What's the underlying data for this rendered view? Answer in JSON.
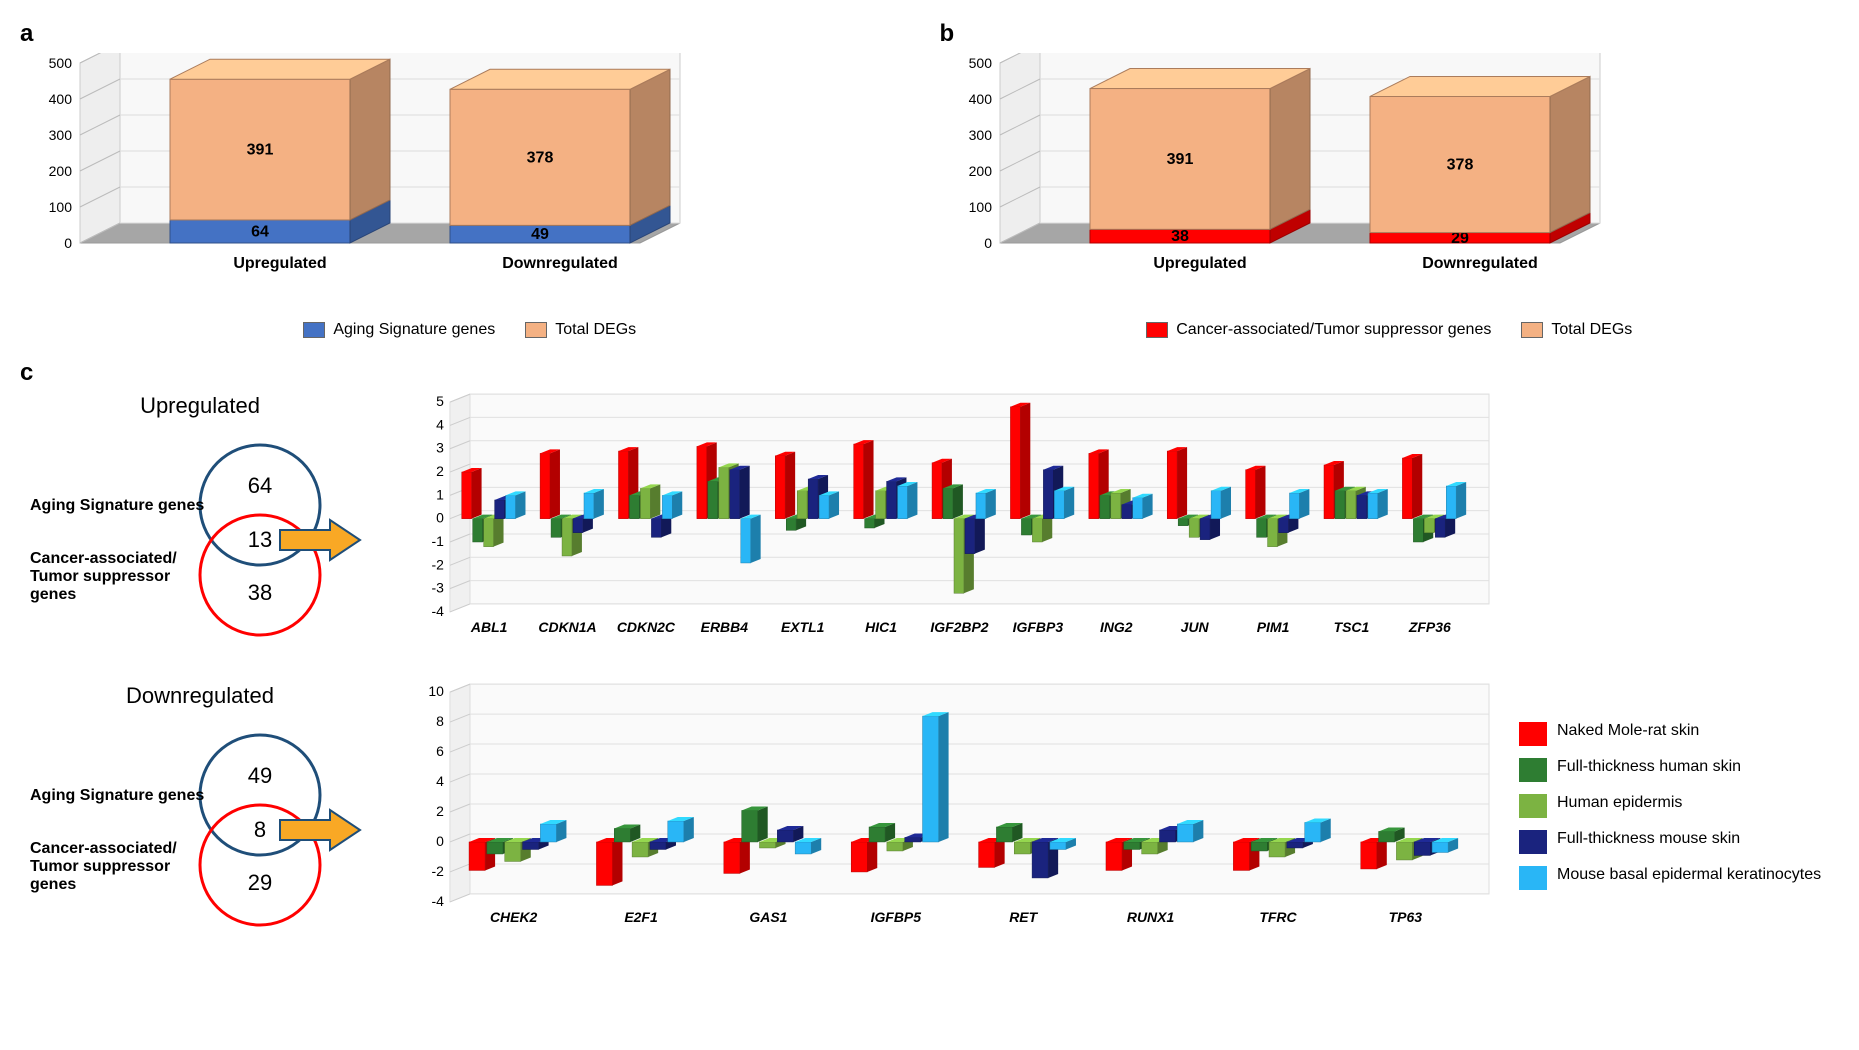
{
  "panel_a": {
    "label": "a",
    "type": "3d-stacked-bar",
    "ylim": [
      0,
      500
    ],
    "ytick_step": 100,
    "categories": [
      "Upregulated",
      "Downregulated"
    ],
    "series": [
      {
        "name": "Aging Signature genes",
        "color": "#4472c4",
        "values": [
          64,
          49
        ]
      },
      {
        "name": "Total DEGs",
        "color": "#f4b183",
        "values": [
          391,
          378
        ]
      }
    ],
    "floor_color": "#a6a6a6",
    "background_color": "#ffffff"
  },
  "panel_b": {
    "label": "b",
    "type": "3d-stacked-bar",
    "ylim": [
      0,
      500
    ],
    "ytick_step": 100,
    "categories": [
      "Upregulated",
      "Downregulated"
    ],
    "series": [
      {
        "name": "Cancer-associated/Tumor suppressor genes",
        "color": "#ff0000",
        "values": [
          38,
          29
        ]
      },
      {
        "name": "Total DEGs",
        "color": "#f4b183",
        "values": [
          391,
          378
        ]
      }
    ],
    "floor_color": "#a6a6a6",
    "background_color": "#ffffff"
  },
  "panel_c": {
    "label": "c",
    "venns": [
      {
        "title": "Upregulated",
        "top_label": "Aging Signature genes",
        "bottom_label": "Cancer-associated/\nTumor suppressor\ngenes",
        "top_value_only": 64,
        "intersection": 13,
        "bottom_value_only": 38,
        "top_circle_color": "#1f4e79",
        "bottom_circle_color": "#ff0000"
      },
      {
        "title": "Downregulated",
        "top_label": "Aging Signature genes",
        "bottom_label": "Cancer-associated/\nTumor suppressor\ngenes",
        "top_value_only": 49,
        "intersection": 8,
        "bottom_value_only": 29,
        "top_circle_color": "#1f4e79",
        "bottom_circle_color": "#ff0000"
      }
    ],
    "species": [
      {
        "name": "Naked Mole-rat skin",
        "color": "#ff0000"
      },
      {
        "name": "Full-thickness human skin",
        "color": "#2e7d32"
      },
      {
        "name": "Human epidermis",
        "color": "#7cb342"
      },
      {
        "name": "Full-thickness mouse skin",
        "color": "#1a237e"
      },
      {
        "name": "Mouse basal epidermal keratinocytes",
        "color": "#29b6f6"
      }
    ],
    "charts": [
      {
        "ylim": [
          -4,
          5
        ],
        "ytick_step": 1,
        "genes": [
          "ABL1",
          "CDKN1A",
          "CDKN2C",
          "ERBB4",
          "EXTL1",
          "HIC1",
          "IGF2BP2",
          "IGFBP3",
          "ING2",
          "JUN",
          "PIM1",
          "TSC1",
          "ZFP36"
        ],
        "values": {
          "ABL1": [
            2.0,
            -1.0,
            -1.2,
            0.8,
            1.0
          ],
          "CDKN1A": [
            2.8,
            -0.8,
            -1.6,
            -0.6,
            1.1
          ],
          "CDKN2C": [
            2.9,
            1.0,
            1.3,
            -0.8,
            1.0
          ],
          "ERBB4": [
            3.1,
            1.6,
            2.2,
            2.1,
            -1.9
          ],
          "EXTL1": [
            2.7,
            -0.5,
            1.2,
            1.7,
            1.0
          ],
          "HIC1": [
            3.2,
            -0.4,
            1.2,
            1.6,
            1.4
          ],
          "IGF2BP2": [
            2.4,
            1.3,
            -3.2,
            -1.5,
            1.1
          ],
          "IGFBP3": [
            4.8,
            -0.7,
            -1.0,
            2.1,
            1.2
          ],
          "ING2": [
            2.8,
            1.0,
            1.1,
            0.6,
            0.9
          ],
          "JUN": [
            2.9,
            -0.3,
            -0.8,
            -0.9,
            1.2
          ],
          "PIM1": [
            2.1,
            -0.8,
            -1.2,
            -0.6,
            1.1
          ],
          "TSC1": [
            2.3,
            1.2,
            1.2,
            1.0,
            1.1
          ],
          "ZFP36": [
            2.6,
            -1.0,
            -0.6,
            -0.8,
            1.4
          ]
        }
      },
      {
        "ylim": [
          -4,
          10
        ],
        "ytick_step": 2,
        "genes": [
          "CHEK2",
          "E2F1",
          "GAS1",
          "IGFBP5",
          "RET",
          "RUNX1",
          "TFRC",
          "TP63"
        ],
        "values": {
          "CHEK2": [
            -1.9,
            -0.8,
            -1.3,
            -0.5,
            1.2
          ],
          "E2F1": [
            -2.9,
            0.9,
            -1.0,
            -0.5,
            1.4
          ],
          "GAS1": [
            -2.1,
            2.1,
            -0.4,
            0.8,
            -0.8
          ],
          "IGFBP5": [
            -2.0,
            1.0,
            -0.6,
            0.3,
            8.4
          ],
          "RET": [
            -1.7,
            1.0,
            -0.8,
            -2.4,
            -0.5
          ],
          "RUNX1": [
            -1.9,
            -0.5,
            -0.8,
            0.8,
            1.2
          ],
          "TFRC": [
            -1.9,
            -0.6,
            -1.0,
            -0.4,
            1.3
          ],
          "TP63": [
            -1.8,
            0.7,
            -1.2,
            -0.9,
            -0.7
          ]
        }
      }
    ],
    "arrow_color": "#f9a825",
    "arrow_border": "#1f4e79"
  }
}
